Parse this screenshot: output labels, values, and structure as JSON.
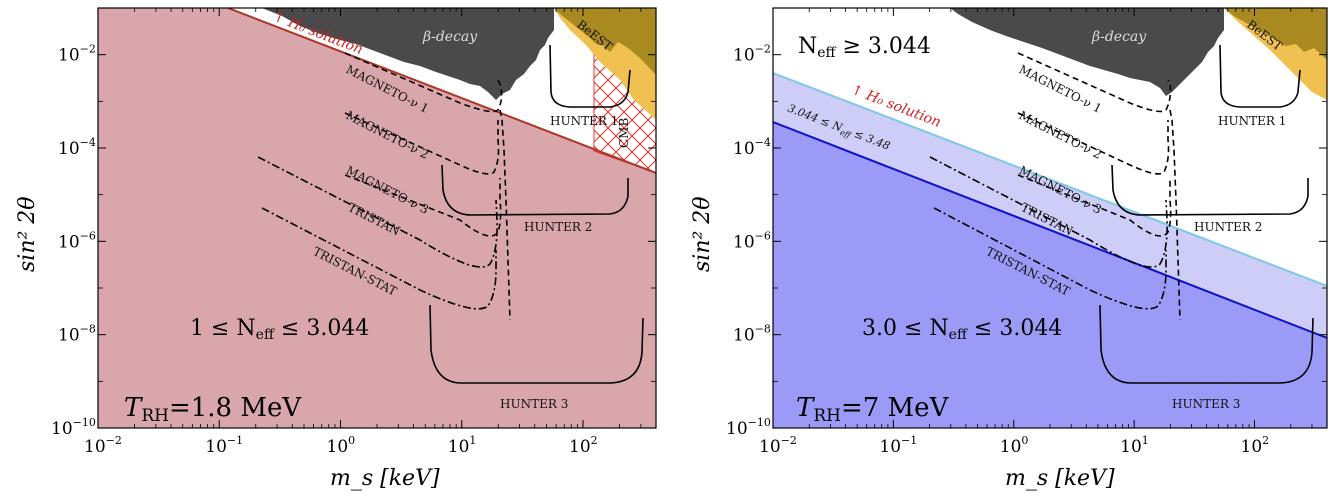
{
  "chart_data": [
    {
      "type": "area",
      "panel": "left",
      "xscale": "log",
      "yscale": "log",
      "xlim": [
        0.01,
        400
      ],
      "ylim": [
        1e-10,
        0.1
      ],
      "xlabel": "m_s [keV]",
      "ylabel": "sin² 2θ",
      "x_ticks": [
        {
          "base": "10",
          "exp": "−2"
        },
        {
          "base": "10",
          "exp": "−1"
        },
        {
          "base": "10",
          "exp": "0"
        },
        {
          "base": "10",
          "exp": "1"
        },
        {
          "base": "10",
          "exp": "2"
        }
      ],
      "y_ticks": [
        {
          "base": "10",
          "exp": "−10"
        },
        {
          "base": "10",
          "exp": "−8"
        },
        {
          "base": "10",
          "exp": "−6"
        },
        {
          "base": "10",
          "exp": "−4"
        },
        {
          "base": "10",
          "exp": "−2"
        }
      ],
      "temperature_label": "T_RH=1.8 MeV",
      "temp_main": "T",
      "temp_sub": "RH",
      "temp_rest": "=1.8 MeV",
      "region_label": "1 ≤ N_eff ≤ 3.044",
      "region_pre": "1 ≤ N",
      "region_sub": "eff",
      "region_post": " ≤ 3.044",
      "h0_label": "↑ H₀ solution",
      "region_color": "#d9a7ab",
      "boundary_color": "#b03426",
      "boundary": [
        [
          0.112,
          0.1
        ],
        [
          400,
          3e-05
        ]
      ],
      "labels": {
        "beta": "β-decay",
        "bebest": "BeEST",
        "cmb": "CMB",
        "m1": "MAGNETO-ν 1",
        "m2": "MAGNETO-ν 2",
        "m3": "MAGNETO-ν 3",
        "tristan": "TRISTAN",
        "tristan_stat": "TRISTAN-STAT",
        "h1": "HUNTER 1",
        "h2": "HUNTER 2",
        "h3": "HUNTER 3"
      }
    },
    {
      "type": "area",
      "panel": "right",
      "xscale": "log",
      "yscale": "log",
      "xlim": [
        0.01,
        400
      ],
      "ylim": [
        1e-10,
        0.1
      ],
      "xlabel": "m_s [keV]",
      "ylabel": "sin² 2θ",
      "x_ticks": [
        {
          "base": "10",
          "exp": "−2"
        },
        {
          "base": "10",
          "exp": "−1"
        },
        {
          "base": "10",
          "exp": "0"
        },
        {
          "base": "10",
          "exp": "1"
        },
        {
          "base": "10",
          "exp": "2"
        }
      ],
      "y_ticks": [
        {
          "base": "10",
          "exp": "−10"
        },
        {
          "base": "10",
          "exp": "−8"
        },
        {
          "base": "10",
          "exp": "−6"
        },
        {
          "base": "10",
          "exp": "−4"
        },
        {
          "base": "10",
          "exp": "−2"
        }
      ],
      "temperature_label": "T_RH=7 MeV",
      "temp_main": "T",
      "temp_sub": "RH",
      "temp_rest": "=7 MeV",
      "region_label": "3.0 ≤ N_eff ≤ 3.044",
      "region_pre": "3.0 ≤ N",
      "region_sub": "eff",
      "region_post": " ≤ 3.044",
      "upper_label": "N_eff ≥ 3.044",
      "upper_pre": "N",
      "upper_sub": "eff",
      "upper_post": " ≥ 3.044",
      "band_label": "3.044 ≤ N_eff ≤ 3.48",
      "band_pre": "3.044 ≤ N",
      "band_sub": "eff",
      "band_post": " ≤ 3.48",
      "h0_label": "↑ H₀ solution",
      "region_color": "#9b9bf7",
      "band_color": "#cdcdf7",
      "lower_boundary_color": "#1111cc",
      "upper_boundary_color": "#7ec8e8",
      "lower_boundary": [
        [
          0.01,
          0.0004
        ],
        [
          400,
          1e-08
        ]
      ],
      "upper_boundary": [
        [
          0.01,
          0.0036
        ],
        [
          400,
          1e-07
        ]
      ],
      "labels": {
        "beta": "β-decay",
        "bebest": "BeEST",
        "m1": "MAGNETO-ν 1",
        "m2": "MAGNETO-ν 2",
        "m3": "MAGNETO-ν 3",
        "tristan": "TRISTAN",
        "tristan_stat": "TRISTAN-STAT",
        "h1": "HUNTER 1",
        "h2": "HUNTER 2",
        "h3": "HUNTER 3"
      }
    }
  ],
  "colors": {
    "beta_fill": "#4a4a4a",
    "bebest_fill": "#f0c050",
    "bebest_dark": "#a88a20",
    "cmb_hatch": "#e03030"
  }
}
